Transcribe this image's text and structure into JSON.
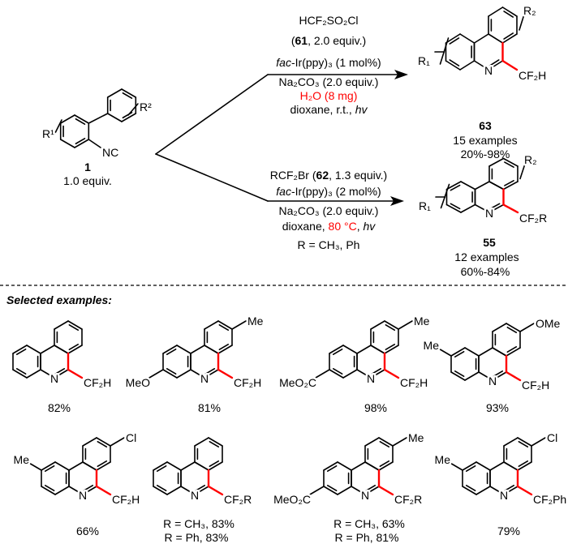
{
  "colors": {
    "highlight": "#ff0000",
    "ink": "#000000"
  },
  "start": {
    "r1": "R¹",
    "r2": "R²",
    "nc": "NC",
    "id": "1",
    "equiv": "1.0 equiv."
  },
  "upper": {
    "reagent1": "HCF₂SO₂Cl",
    "reagent2_open": "(",
    "reagent2_id": "61",
    "reagent2_rest": ", 2.0 equiv.)",
    "cat_prefix": "fac",
    "cat_rest": "-Ir(ppy)₃ (1 mol%)",
    "base": "Na₂CO₃ (2.0 equiv.)",
    "additive": "H₂O (8 mg)",
    "cond_a": "dioxane, r.t., ",
    "cond_b": "hv",
    "product": {
      "r1": "R₁",
      "r2": "R₂",
      "n": "N",
      "sub": "CF₂H",
      "id": "63",
      "examples": "15 examples",
      "yield": "20%-98%"
    }
  },
  "lower": {
    "reagent1_a": "RCF₂Br (",
    "reagent1_id": "62",
    "reagent1_b": ", 1.3 equiv.)",
    "cat_prefix": "fac",
    "cat_rest": "-Ir(ppy)₃ (2 mol%)",
    "base": "Na₂CO₃ (2.0 equiv.)",
    "cond_a": "dioxane, ",
    "cond_temp": "80 °C",
    "cond_c": ", ",
    "cond_d": "hv",
    "r_def": "R = CH₃, Ph",
    "product": {
      "r1": "R₁",
      "r2": "R₂",
      "n": "N",
      "sub": "CF₂R",
      "id": "55",
      "examples": "12 examples",
      "yield": "60%-84%"
    }
  },
  "selected_header": "Selected examples:",
  "examples": [
    {
      "n": "N",
      "sub": "CF₂H",
      "yield": "82%"
    },
    {
      "n": "N",
      "sub": "CF₂H",
      "left": "MeO",
      "top": "Me",
      "yield": "81%"
    },
    {
      "n": "N",
      "sub": "CF₂H",
      "left": "MeO₂C",
      "top": "Me",
      "yield": "98%"
    },
    {
      "n": "N",
      "sub": "CF₂H",
      "upperleft": "Me",
      "top": "OMe",
      "yield": "93%"
    },
    {
      "n": "N",
      "sub": "CF₂H",
      "upperleft": "Me",
      "top": "Cl",
      "yield": "66%"
    },
    {
      "n": "N",
      "sub": "CF₂R",
      "yield1": "R = CH₃, 83%",
      "yield2": "R = Ph, 83%"
    },
    {
      "n": "N",
      "sub": "CF₂R",
      "left": "MeO₂C",
      "top": "Me",
      "yield1": "R = CH₃, 63%",
      "yield2": "R = Ph, 81%"
    },
    {
      "n": "N",
      "sub": "CF₂Ph",
      "upperleft": "Me",
      "top": "Cl",
      "yield": "79%"
    }
  ]
}
